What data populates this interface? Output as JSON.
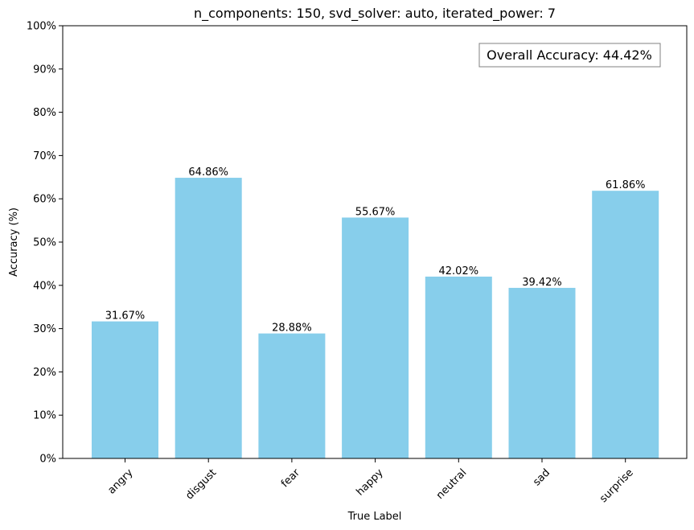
{
  "chart_data": {
    "type": "bar",
    "title": "n_components: 150, svd_solver: auto, iterated_power: 7",
    "xlabel": "True Label",
    "ylabel": "Accuracy (%)",
    "categories": [
      "angry",
      "disgust",
      "fear",
      "happy",
      "neutral",
      "sad",
      "surprise"
    ],
    "values": [
      31.67,
      64.86,
      28.88,
      55.67,
      42.02,
      39.42,
      61.86
    ],
    "value_labels": [
      "31.67%",
      "64.86%",
      "28.88%",
      "55.67%",
      "42.02%",
      "39.42%",
      "61.86%"
    ],
    "ylim": [
      0,
      100
    ],
    "yticks": [
      0,
      10,
      20,
      30,
      40,
      50,
      60,
      70,
      80,
      90,
      100
    ],
    "ytick_labels": [
      "0%",
      "10%",
      "20%",
      "30%",
      "40%",
      "50%",
      "60%",
      "70%",
      "80%",
      "90%",
      "100%"
    ],
    "bar_color": "#87ceeb",
    "grid": false,
    "annotation": "Overall Accuracy: 44.42%",
    "annotation_placement": "top-right"
  }
}
